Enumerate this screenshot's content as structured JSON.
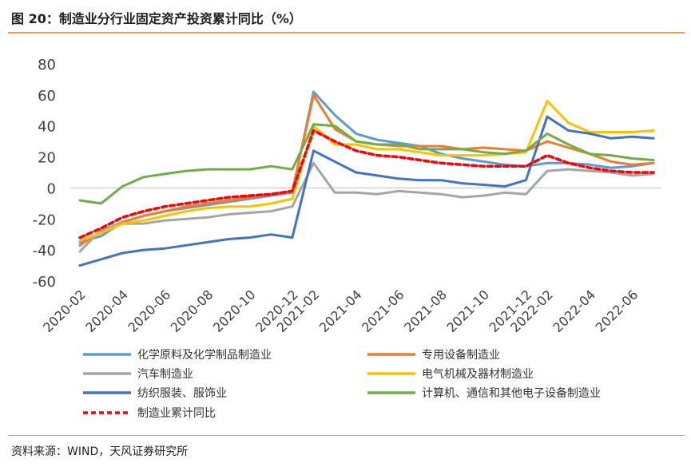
{
  "header": {
    "title": "图 20：制造业分行业固定资产投资累计同比（%）"
  },
  "footer": {
    "source": "资料来源：WIND，天风证券研究所"
  },
  "chart_data": {
    "type": "line",
    "title": "图 20：制造业分行业固定资产投资累计同比（%）",
    "xlabel": "",
    "ylabel": "",
    "ylim": [
      -60,
      80
    ],
    "yticks": [
      80,
      60,
      40,
      20,
      0,
      -20,
      -40,
      -60
    ],
    "grid": false,
    "legend_position": "bottom",
    "x": [
      "2020-02",
      "2020-03",
      "2020-04",
      "2020-05",
      "2020-06",
      "2020-07",
      "2020-08",
      "2020-09",
      "2020-10",
      "2020-11",
      "2020-12",
      "2021-02",
      "2021-03",
      "2021-04",
      "2021-05",
      "2021-06",
      "2021-07",
      "2021-08",
      "2021-09",
      "2021-10",
      "2021-11",
      "2021-12",
      "2022-02",
      "2022-03",
      "2022-04",
      "2022-05",
      "2022-06",
      "2022-07"
    ],
    "xtick_labels": [
      "2020-02",
      "2020-04",
      "2020-06",
      "2020-08",
      "2020-10",
      "2020-12",
      "2021-02",
      "2021-04",
      "2021-06",
      "2021-08",
      "2021-10",
      "2021-12",
      "2022-02",
      "2022-04",
      "2022-06"
    ],
    "series": [
      {
        "name": "化学原料及化学制品制造业",
        "color": "#5b9bd5",
        "dash": "none",
        "values": [
          -35,
          -31,
          -22,
          -18,
          -15,
          -13,
          -11,
          -9,
          -7,
          -5,
          -3,
          62,
          47,
          35,
          31,
          29,
          27,
          22,
          19,
          17,
          15,
          14,
          16,
          16,
          15,
          13,
          14,
          16
        ]
      },
      {
        "name": "专用设备制造业",
        "color": "#ed7d31",
        "dash": "none",
        "values": [
          -37,
          -28,
          -22,
          -18,
          -15,
          -12,
          -10,
          -8,
          -6,
          -4,
          -2,
          60,
          38,
          30,
          28,
          27,
          27,
          27,
          25,
          26,
          25,
          24,
          30,
          26,
          22,
          17,
          15,
          16
        ]
      },
      {
        "name": "汽车制造业",
        "color": "#a5a5a5",
        "dash": "none",
        "values": [
          -41,
          -27,
          -23,
          -23,
          -21,
          -20,
          -19,
          -17,
          -16,
          -15,
          -12,
          16,
          -3,
          -3,
          -4,
          -2,
          -3,
          -4,
          -6,
          -5,
          -3,
          -4,
          11,
          12,
          11,
          10,
          8,
          9
        ]
      },
      {
        "name": "电气机械及器材制造业",
        "color": "#ffc000",
        "dash": "none",
        "values": [
          -34,
          -29,
          -23,
          -21,
          -18,
          -15,
          -13,
          -12,
          -12,
          -10,
          -7,
          40,
          28,
          28,
          25,
          25,
          23,
          21,
          21,
          21,
          22,
          23,
          56,
          42,
          36,
          36,
          36,
          37
        ]
      },
      {
        "name": "纺织服装、服饰业",
        "color": "#4472c4",
        "dash": "none",
        "values": [
          -50,
          -46,
          -42,
          -40,
          -39,
          -37,
          -35,
          -33,
          -32,
          -30,
          -32,
          24,
          17,
          10,
          8,
          6,
          5,
          5,
          3,
          2,
          1,
          5,
          46,
          37,
          35,
          32,
          33,
          32
        ]
      },
      {
        "name": "计算机、通信和其他电子设备制造业",
        "color": "#70ad47",
        "dash": "none",
        "values": [
          -8,
          -10,
          1,
          7,
          9,
          11,
          12,
          12,
          12,
          14,
          12,
          41,
          40,
          30,
          28,
          28,
          25,
          25,
          25,
          23,
          22,
          24,
          35,
          28,
          22,
          21,
          19,
          18
        ]
      },
      {
        "name": "制造业累计同比",
        "color": "#ff0000",
        "dash": "6,4",
        "values": [
          -32,
          -26,
          -19,
          -15,
          -12,
          -10,
          -8,
          -6,
          -5,
          -4,
          -2,
          37,
          30,
          24,
          21,
          20,
          18,
          16,
          15,
          14,
          14,
          14,
          21,
          16,
          13,
          11,
          10,
          10
        ]
      }
    ]
  }
}
